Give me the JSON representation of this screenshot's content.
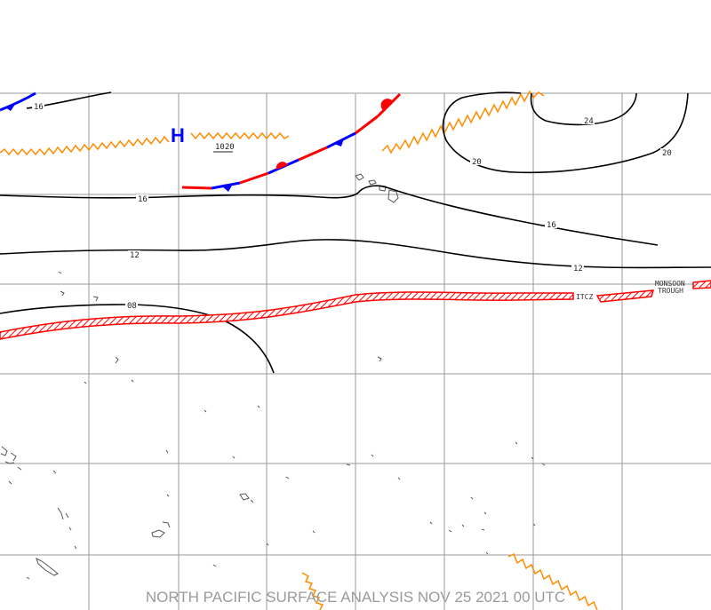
{
  "map": {
    "footer_title": "NORTH PACIFIC SURFACE ANALYSIS NOV 25 2021 00 UTC",
    "high_center": {
      "symbol": "H",
      "pressure": "1020"
    },
    "isobar_labels": [
      "16",
      "16",
      "12",
      "12",
      "08",
      "16",
      "20",
      "20",
      "24"
    ],
    "itcz_label": "ITCZ",
    "monsoon_trough_label": [
      "MONSOON",
      "TROUGH"
    ],
    "colors": {
      "isobar": "#000000",
      "cold_front": "#0000ff",
      "warm_front": "#ff0000",
      "ridge_axis": "#ff8c00",
      "itcz_band": "#ff0000",
      "grid": "#9a9a9a",
      "footer_text": "#9a9a9a"
    },
    "icons": {
      "cold_front": "blue-triangle-pip-icon",
      "warm_front": "red-semicircle-pip-icon",
      "ridge": "orange-zigzag-line",
      "itcz": "red-hatched-band"
    }
  }
}
